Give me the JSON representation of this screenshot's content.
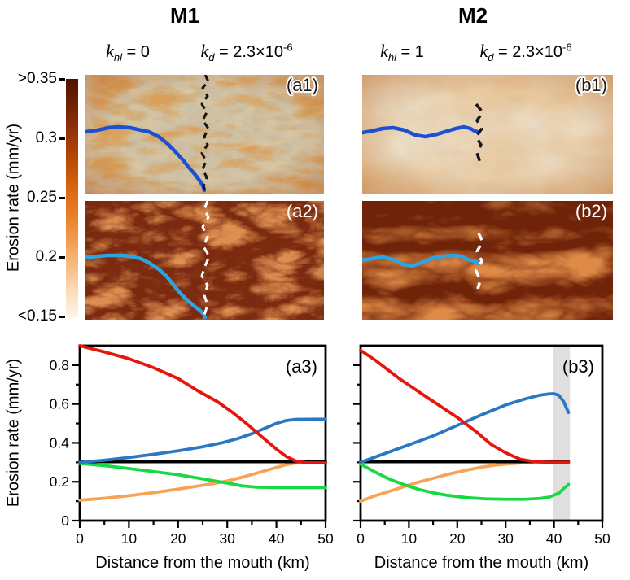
{
  "header": {
    "columns": [
      {
        "title": "M1",
        "khl_sym": "k",
        "khl_sub": "hl",
        "khl_eq": "= 0",
        "kd_sym": "k",
        "kd_sub": "d",
        "kd_eq": "= 2.3×10",
        "kd_exp": "-6"
      },
      {
        "title": "M2",
        "khl_sym": "k",
        "khl_sub": "hl",
        "khl_eq": "= 1",
        "kd_sym": "k",
        "kd_sub": "d",
        "kd_eq": "= 2.3×10",
        "kd_exp": "-6"
      }
    ]
  },
  "colorbar": {
    "label": "Erosion rate (mm/yr)",
    "tick_labels": [
      ">0.35",
      "0.3",
      "0.25",
      "0.2",
      "<0.15"
    ],
    "color_top": "#4e1400",
    "color_mid": "#d96410",
    "color_bottom": "#fdf4e8"
  },
  "maps": {
    "panels": [
      {
        "label": "(a1)",
        "label_style": "dark-outlined",
        "base_color": "#d5c6a5",
        "vein_color": "#b4581c",
        "river_color": "#1b50d2",
        "divide_color": "#151515"
      },
      {
        "label": "(b1)",
        "label_style": "dark-outlined",
        "base_color": "#ece0cb",
        "vein_color": "#c9834a",
        "river_color": "#1b50d2",
        "divide_color": "#151515"
      },
      {
        "label": "(a2)",
        "label_style": "white",
        "base_color": "#7b2a10",
        "vein_color": "#bf4c1a",
        "river_color": "#2aa5e2",
        "divide_color": "#ffffff"
      },
      {
        "label": "(b2)",
        "label_style": "white",
        "base_color": "#6f2308",
        "vein_color": "#c44914",
        "river_color": "#2aa5e2",
        "divide_color": "#ffffff"
      }
    ]
  },
  "chart_data": [
    {
      "type": "line",
      "panel_label": "(a3)",
      "xlabel": "Distance from the mouth (km)",
      "ylabel": "Erosion rate (mm/yr)",
      "xlim": [
        0,
        50
      ],
      "ylim": [
        0,
        0.9
      ],
      "xticks": [
        0,
        10,
        20,
        30,
        40,
        50
      ],
      "yticks": [
        0,
        0.2,
        0.4,
        0.6,
        0.8
      ],
      "x_minor_step": 5,
      "y_minor_step": 0.1,
      "show_ytick_labels": true,
      "grid": false,
      "legend": null,
      "shaded_band": null,
      "series": [
        {
          "name": "orange",
          "color": "#f8a254",
          "points": [
            [
              0,
              0.105
            ],
            [
              5,
              0.115
            ],
            [
              10,
              0.128
            ],
            [
              15,
              0.144
            ],
            [
              20,
              0.162
            ],
            [
              24,
              0.178
            ],
            [
              27,
              0.19
            ],
            [
              30,
              0.204
            ],
            [
              33,
              0.223
            ],
            [
              36,
              0.244
            ],
            [
              39,
              0.266
            ],
            [
              42,
              0.288
            ],
            [
              44,
              0.297
            ],
            [
              46,
              0.3
            ],
            [
              50,
              0.3
            ]
          ]
        },
        {
          "name": "green",
          "color": "#17d943",
          "points": [
            [
              0,
              0.294
            ],
            [
              5,
              0.283
            ],
            [
              10,
              0.268
            ],
            [
              15,
              0.252
            ],
            [
              20,
              0.236
            ],
            [
              24,
              0.219
            ],
            [
              27,
              0.206
            ],
            [
              30,
              0.193
            ],
            [
              33,
              0.179
            ],
            [
              36,
              0.172
            ],
            [
              40,
              0.17
            ],
            [
              50,
              0.17
            ]
          ]
        },
        {
          "name": "black",
          "color": "#000000",
          "points": [
            [
              0,
              0.303
            ],
            [
              50,
              0.303
            ]
          ]
        },
        {
          "name": "blue",
          "color": "#2b78c2",
          "points": [
            [
              0,
              0.3
            ],
            [
              5,
              0.311
            ],
            [
              10,
              0.325
            ],
            [
              15,
              0.341
            ],
            [
              20,
              0.359
            ],
            [
              25,
              0.38
            ],
            [
              29,
              0.401
            ],
            [
              32,
              0.421
            ],
            [
              35,
              0.447
            ],
            [
              38,
              0.479
            ],
            [
              40,
              0.5
            ],
            [
              42,
              0.515
            ],
            [
              44,
              0.521
            ],
            [
              50,
              0.522
            ]
          ]
        },
        {
          "name": "red",
          "color": "#e4170e",
          "points": [
            [
              0,
              0.9
            ],
            [
              5,
              0.868
            ],
            [
              10,
              0.833
            ],
            [
              15,
              0.787
            ],
            [
              20,
              0.731
            ],
            [
              24,
              0.668
            ],
            [
              28,
              0.612
            ],
            [
              31,
              0.558
            ],
            [
              34,
              0.498
            ],
            [
              37,
              0.432
            ],
            [
              40,
              0.368
            ],
            [
              42,
              0.33
            ],
            [
              44,
              0.306
            ],
            [
              46,
              0.298
            ],
            [
              50,
              0.297
            ]
          ]
        }
      ]
    },
    {
      "type": "line",
      "panel_label": "(b3)",
      "xlabel": "Distance from the mouth (km)",
      "ylabel": "",
      "xlim": [
        0,
        50
      ],
      "ylim": [
        0,
        0.9
      ],
      "xticks": [
        0,
        10,
        20,
        30,
        40,
        50
      ],
      "yticks": [
        0,
        0.2,
        0.4,
        0.6,
        0.8
      ],
      "x_minor_step": 5,
      "y_minor_step": 0.1,
      "show_ytick_labels": false,
      "grid": false,
      "legend": null,
      "shaded_band": [
        39.9,
        43.3
      ],
      "band_color": "#dfdfdf",
      "series": [
        {
          "name": "orange",
          "color": "#f8a254",
          "points": [
            [
              0,
              0.1
            ],
            [
              3,
              0.128
            ],
            [
              6,
              0.151
            ],
            [
              9,
              0.175
            ],
            [
              12,
              0.198
            ],
            [
              15,
              0.218
            ],
            [
              18,
              0.238
            ],
            [
              22,
              0.26
            ],
            [
              25,
              0.275
            ],
            [
              28,
              0.286
            ],
            [
              31,
              0.293
            ],
            [
              34,
              0.298
            ],
            [
              43,
              0.298
            ]
          ]
        },
        {
          "name": "green",
          "color": "#17d943",
          "points": [
            [
              0,
              0.29
            ],
            [
              3,
              0.25
            ],
            [
              6,
              0.213
            ],
            [
              9,
              0.185
            ],
            [
              12,
              0.161
            ],
            [
              15,
              0.143
            ],
            [
              18,
              0.13
            ],
            [
              22,
              0.118
            ],
            [
              26,
              0.112
            ],
            [
              30,
              0.11
            ],
            [
              34,
              0.11
            ],
            [
              37,
              0.114
            ],
            [
              39,
              0.121
            ],
            [
              41,
              0.141
            ],
            [
              42,
              0.165
            ],
            [
              43,
              0.186
            ]
          ]
        },
        {
          "name": "black",
          "color": "#000000",
          "points": [
            [
              0,
              0.303
            ],
            [
              43,
              0.303
            ]
          ]
        },
        {
          "name": "blue",
          "color": "#2b78c2",
          "points": [
            [
              0,
              0.3
            ],
            [
              5,
              0.345
            ],
            [
              10,
              0.39
            ],
            [
              15,
              0.436
            ],
            [
              20,
              0.49
            ],
            [
              25,
              0.544
            ],
            [
              30,
              0.595
            ],
            [
              34,
              0.626
            ],
            [
              37,
              0.645
            ],
            [
              39,
              0.652
            ],
            [
              40,
              0.653
            ],
            [
              41,
              0.645
            ],
            [
              42,
              0.612
            ],
            [
              43,
              0.556
            ]
          ]
        },
        {
          "name": "red",
          "color": "#e4170e",
          "points": [
            [
              0,
              0.876
            ],
            [
              3,
              0.826
            ],
            [
              8,
              0.731
            ],
            [
              14,
              0.63
            ],
            [
              20,
              0.531
            ],
            [
              24,
              0.456
            ],
            [
              27,
              0.392
            ],
            [
              30,
              0.349
            ],
            [
              33,
              0.316
            ],
            [
              36,
              0.303
            ],
            [
              39,
              0.3
            ],
            [
              43,
              0.3
            ]
          ]
        }
      ]
    }
  ]
}
